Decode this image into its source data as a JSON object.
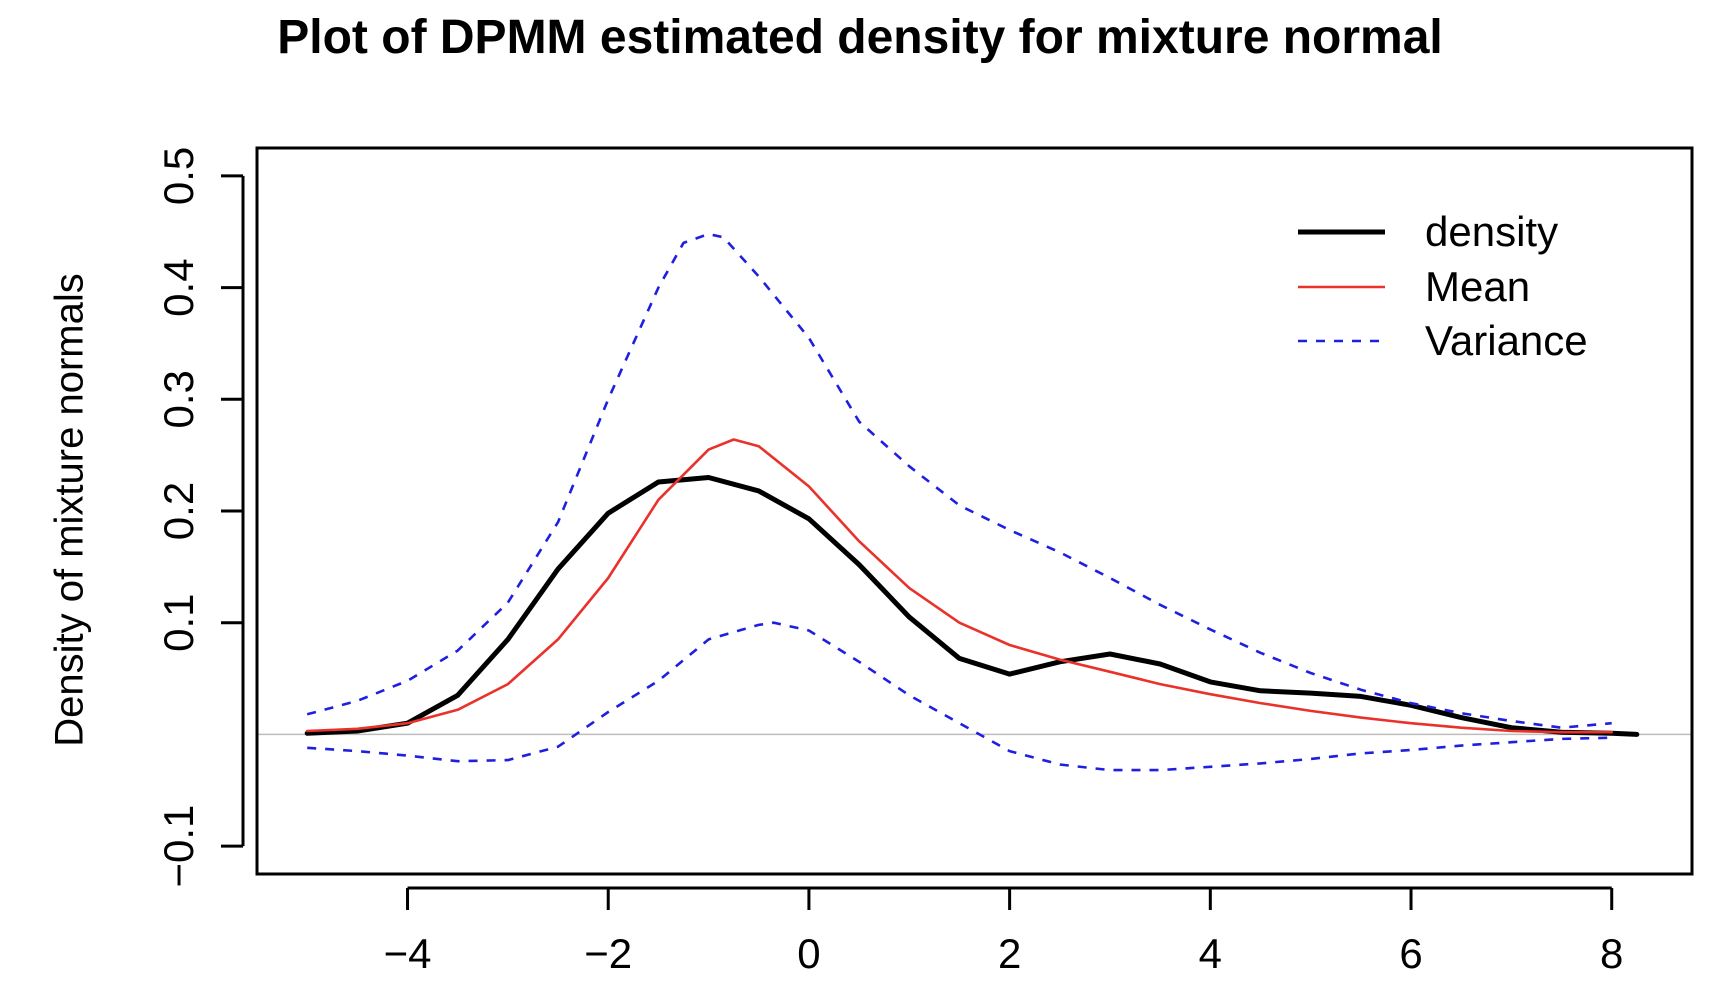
{
  "chart_data": {
    "type": "line",
    "title": "Plot of DPMM estimated density for mixture normal",
    "xlabel": "",
    "ylabel": "Density of mixture normals",
    "xlim": [
      -5.5,
      8.8
    ],
    "ylim": [
      -0.125,
      0.525
    ],
    "x_ticks": [
      -4,
      -2,
      0,
      2,
      4,
      6,
      8
    ],
    "y_ticks": [
      -0.1,
      0.1,
      0.2,
      0.3,
      0.4,
      0.5
    ],
    "x_tick_labels": [
      "−4",
      "−2",
      "0",
      "2",
      "4",
      "6",
      "8"
    ],
    "y_tick_labels": [
      "−0.1",
      "0.1",
      "0.2",
      "0.3",
      "0.4",
      "0.5"
    ],
    "hline": 0,
    "legend": {
      "position": "top-right",
      "entries": [
        "density",
        "Mean",
        "Variance"
      ]
    },
    "series": [
      {
        "name": "density",
        "color": "#000000",
        "style": "solid",
        "width": 5,
        "x": [
          -5.0,
          -4.5,
          -4.0,
          -3.5,
          -3.0,
          -2.5,
          -2.0,
          -1.5,
          -1.0,
          -0.5,
          0.0,
          0.5,
          1.0,
          1.5,
          2.0,
          2.5,
          3.0,
          3.5,
          4.0,
          4.5,
          5.0,
          5.5,
          6.0,
          6.5,
          7.0,
          7.5,
          8.0,
          8.25
        ],
        "y": [
          0.001,
          0.003,
          0.01,
          0.035,
          0.085,
          0.148,
          0.198,
          0.226,
          0.23,
          0.218,
          0.193,
          0.152,
          0.105,
          0.068,
          0.054,
          0.065,
          0.072,
          0.063,
          0.047,
          0.039,
          0.037,
          0.034,
          0.026,
          0.015,
          0.006,
          0.002,
          0.001,
          0.0
        ]
      },
      {
        "name": "Mean",
        "color": "#e8322a",
        "style": "solid",
        "width": 2.6,
        "x": [
          -5.0,
          -4.5,
          -4.0,
          -3.5,
          -3.0,
          -2.5,
          -2.0,
          -1.5,
          -1.0,
          -0.75,
          -0.5,
          0.0,
          0.5,
          1.0,
          1.5,
          2.0,
          2.5,
          3.0,
          3.5,
          4.0,
          4.5,
          5.0,
          5.5,
          6.0,
          6.5,
          7.0,
          7.5,
          8.0
        ],
        "y": [
          0.003,
          0.005,
          0.01,
          0.022,
          0.045,
          0.085,
          0.14,
          0.21,
          0.255,
          0.264,
          0.258,
          0.222,
          0.173,
          0.131,
          0.1,
          0.08,
          0.067,
          0.056,
          0.045,
          0.036,
          0.028,
          0.021,
          0.015,
          0.01,
          0.006,
          0.003,
          0.002,
          0.002
        ]
      },
      {
        "name": "Variance",
        "color": "#1f1fe0",
        "style": "dashed",
        "width": 2.6,
        "x": [
          -5.0,
          -4.5,
          -4.0,
          -3.5,
          -3.0,
          -2.5,
          -2.0,
          -1.5,
          -1.25,
          -1.0,
          -0.85,
          -0.5,
          0.0,
          0.5,
          1.0,
          1.5,
          2.0,
          2.5,
          3.0,
          3.5,
          4.0,
          4.5,
          5.0,
          5.5,
          6.0,
          6.5,
          7.0,
          7.5,
          8.0
        ],
        "y": [
          0.018,
          0.03,
          0.048,
          0.075,
          0.118,
          0.19,
          0.3,
          0.4,
          0.44,
          0.448,
          0.445,
          0.41,
          0.355,
          0.28,
          0.24,
          0.205,
          0.183,
          0.163,
          0.14,
          0.116,
          0.094,
          0.073,
          0.055,
          0.04,
          0.028,
          0.019,
          0.012,
          0.006,
          0.01
        ]
      },
      {
        "name": "Variance (lower)",
        "color": "#1f1fe0",
        "style": "dashed",
        "width": 2.6,
        "x": [
          -5.0,
          -4.5,
          -4.0,
          -3.5,
          -3.0,
          -2.5,
          -2.0,
          -1.5,
          -1.0,
          -0.5,
          -0.35,
          0.0,
          0.5,
          1.0,
          1.5,
          2.0,
          2.5,
          3.0,
          3.5,
          4.0,
          4.5,
          5.0,
          5.5,
          6.0,
          6.5,
          7.0,
          7.5,
          8.0
        ],
        "y": [
          -0.012,
          -0.015,
          -0.019,
          -0.024,
          -0.023,
          -0.011,
          0.02,
          0.048,
          0.085,
          0.098,
          0.1,
          0.093,
          0.065,
          0.035,
          0.01,
          -0.015,
          -0.027,
          -0.032,
          -0.032,
          -0.029,
          -0.026,
          -0.022,
          -0.017,
          -0.014,
          -0.01,
          -0.007,
          -0.004,
          -0.003
        ]
      }
    ]
  }
}
